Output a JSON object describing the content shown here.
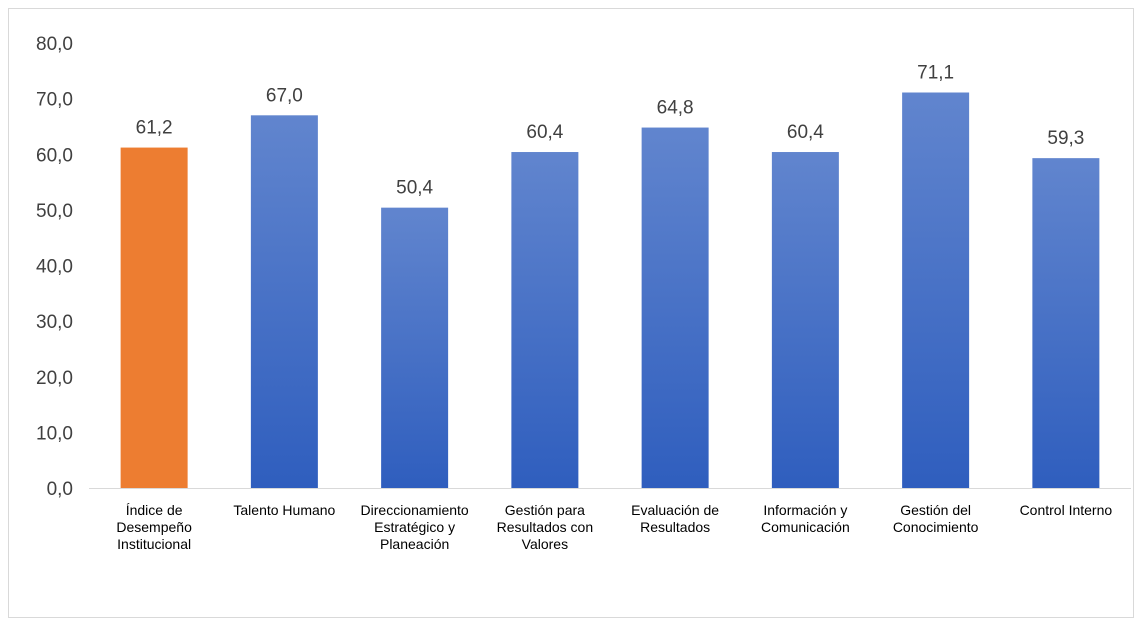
{
  "chart_data": {
    "type": "bar",
    "categories": [
      "Índice de Desempeño Institucional",
      "Talento Humano",
      "Direccionamiento Estratégico y Planeación",
      "Gestión para Resultados con Valores",
      "Evaluación de Resultados",
      "Información y Comunicación",
      "Gestión del Conocimiento",
      "Control Interno"
    ],
    "category_lines": [
      [
        "Índice de",
        "Desempeño",
        "Institucional"
      ],
      [
        "Talento Humano"
      ],
      [
        "Direccionamiento",
        "Estratégico y",
        "Planeación"
      ],
      [
        "Gestión para",
        "Resultados con",
        "Valores"
      ],
      [
        "Evaluación de",
        "Resultados"
      ],
      [
        "Información y",
        "Comunicación"
      ],
      [
        "Gestión del",
        "Conocimiento"
      ],
      [
        "Control Interno"
      ]
    ],
    "values": [
      61.2,
      67.0,
      50.4,
      60.4,
      64.8,
      60.4,
      71.1,
      59.3
    ],
    "value_labels": [
      "61,2",
      "67,0",
      "50,4",
      "60,4",
      "64,8",
      "60,4",
      "71,1",
      "59,3"
    ],
    "y_tick_labels": [
      "0,0",
      "10,0",
      "20,0",
      "30,0",
      "40,0",
      "50,0",
      "60,0",
      "70,0",
      "80,0"
    ],
    "title": "",
    "xlabel": "",
    "ylabel": "",
    "ylim": [
      0,
      80
    ],
    "grid": false,
    "legend": "none",
    "bar_colors": [
      "#ED7D31",
      "#4472C4",
      "#4472C4",
      "#4472C4",
      "#4472C4",
      "#4472C4",
      "#4472C4",
      "#4472C4"
    ],
    "gradient": {
      "top": "#6185CE",
      "bottom": "#2F5EBE"
    },
    "highlight_color": "#ED7D31",
    "axis_color": "#D9D9D9"
  }
}
